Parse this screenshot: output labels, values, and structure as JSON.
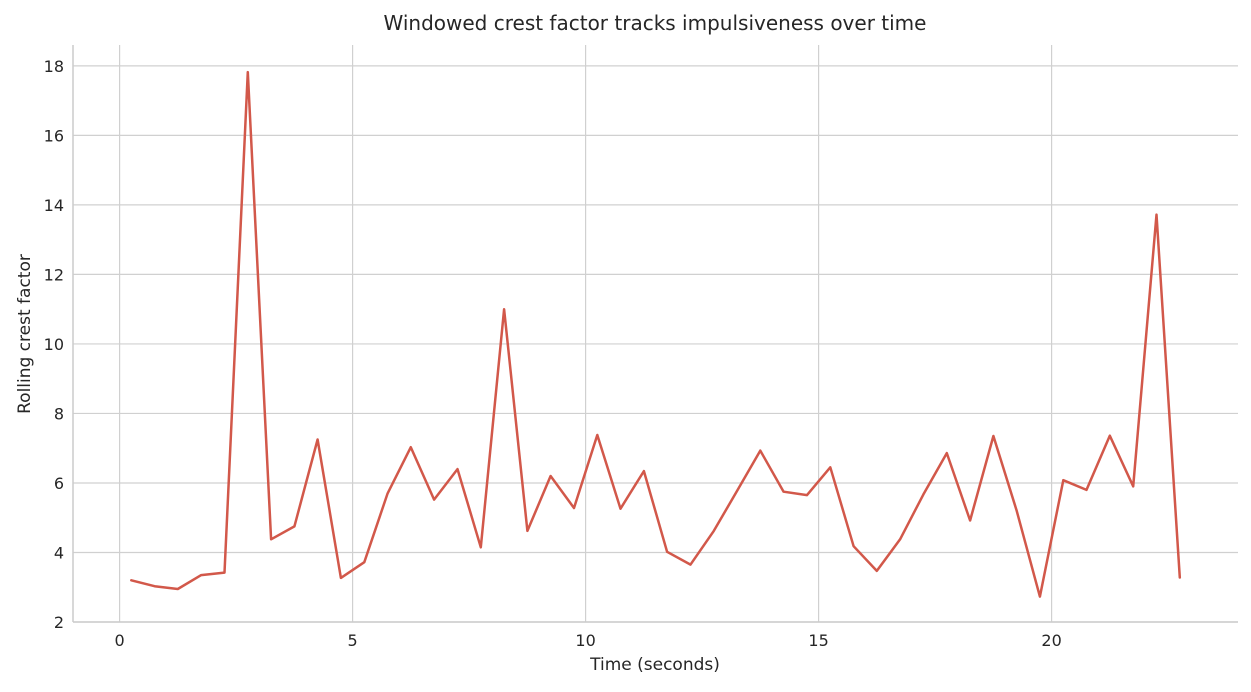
{
  "chart_data": {
    "type": "line",
    "title": "Windowed crest factor tracks impulsiveness over time",
    "xlabel": "Time (seconds)",
    "ylabel": "Rolling crest factor",
    "xlim": [
      -1.0,
      24.0
    ],
    "ylim": [
      2.0,
      18.6
    ],
    "xticks": [
      0,
      5,
      10,
      15,
      20
    ],
    "yticks": [
      2,
      4,
      6,
      8,
      10,
      12,
      14,
      16,
      18
    ],
    "grid": true,
    "line_color": "#d2584a",
    "series": [
      {
        "x": [
          0.25,
          0.75,
          1.25,
          1.75,
          2.25,
          2.75,
          3.25,
          3.75,
          4.25,
          4.75,
          5.25,
          5.75,
          6.25,
          6.75,
          7.25,
          7.75,
          8.25,
          8.75,
          9.25,
          9.75,
          10.25,
          10.75,
          11.25,
          11.75,
          12.25,
          12.75,
          13.25,
          13.75,
          14.25,
          14.75,
          15.25,
          15.75,
          16.25,
          16.75,
          17.25,
          17.75,
          18.25,
          18.75,
          19.25,
          19.75,
          20.25,
          20.75,
          21.25,
          21.75,
          22.25,
          22.75
        ],
        "y": [
          3.2,
          3.03,
          2.95,
          3.35,
          3.42,
          17.82,
          4.38,
          4.75,
          7.25,
          3.27,
          3.72,
          5.7,
          7.03,
          5.52,
          6.4,
          4.15,
          11.0,
          4.62,
          6.2,
          5.28,
          7.38,
          5.26,
          6.34,
          4.02,
          3.65,
          4.62,
          5.77,
          6.93,
          5.75,
          5.65,
          6.45,
          4.18,
          3.47,
          4.38,
          5.67,
          6.86,
          4.92,
          7.35,
          5.2,
          2.73,
          6.08,
          5.8,
          7.36,
          5.9,
          13.72,
          3.28
        ]
      }
    ]
  }
}
